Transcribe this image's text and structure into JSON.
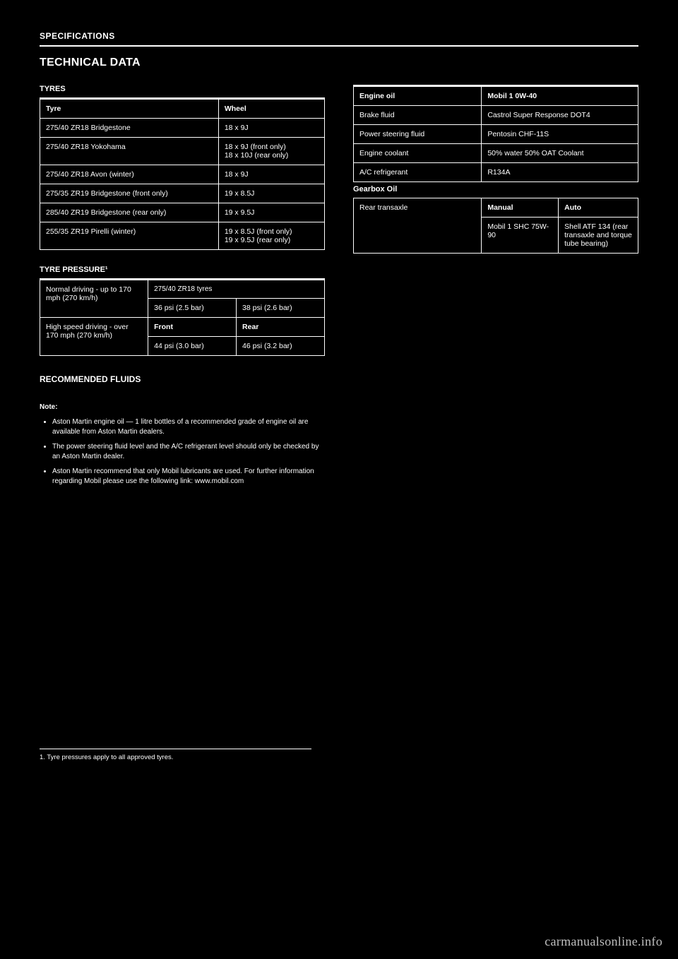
{
  "header": {
    "section_label": "SPECIFICATIONS",
    "page_title": "TECHNICAL DATA"
  },
  "left": {
    "tyres_title": "TYRES",
    "tyres_table": {
      "columns": [
        "Tyre",
        "Wheel"
      ],
      "rows": [
        [
          "275/40 ZR18 Bridgestone",
          "18 x 9J"
        ],
        [
          "275/40 ZR18 Yokohama",
          "18 x 9J (front only)\n18 x 10J (rear only)"
        ],
        [
          "275/40 ZR18 Avon (winter)",
          "18 x 9J"
        ],
        [
          "275/35 ZR19 Bridgestone (front only)",
          "19 x 8.5J"
        ],
        [
          "285/40 ZR19 Bridgestone (rear only)",
          "19 x 9.5J"
        ],
        [
          "255/35 ZR19 Pirelli (winter)",
          "19 x 8.5J (front only)\n19 x 9.5J (rear only)"
        ]
      ]
    },
    "pressure_title": "TYRE PRESSURE¹",
    "pressure_table": {
      "rows": [
        {
          "label": "Normal driving - up to 170 mph (270 km/h)",
          "span": true,
          "front": "36 psi (2.5 bar)",
          "rear": "38 psi (2.6 bar)"
        },
        {
          "label": "275/40 ZR18 tyres",
          "span": true,
          "front_header": "Front",
          "rear_header": "Rear"
        },
        {
          "label": "High speed driving - over 170 mph (270 km/h)",
          "span": false,
          "front": "44 psi (3.0 bar)",
          "rear": "46 psi (3.2 bar)"
        }
      ]
    },
    "fluids_title": "RECOMMENDED FLUIDS",
    "note_label": "Note:",
    "note_items": [
      "Aston Martin engine oil — 1 litre bottles of a recommended grade of engine oil are available from Aston Martin dealers.",
      "The power steering fluid level and the A/C refrigerant level should only be checked by an Aston Martin dealer.",
      "Aston Martin recommend that only Mobil lubricants are used. For further information regarding Mobil please use the following link: www.mobil.com"
    ],
    "footnote_text": "1. Tyre pressures apply to all approved tyres."
  },
  "right": {
    "fluids_table": {
      "columns": [
        "Engine oil",
        "Mobil 1 0W-40"
      ],
      "rows": [
        [
          "Brake fluid",
          "Castrol Super Response DOT4"
        ],
        [
          "Power steering fluid",
          "Pentosin CHF-11S"
        ],
        [
          "Engine coolant",
          "50% water 50% OAT Coolant"
        ],
        [
          "A/C refrigerant",
          "R134A"
        ]
      ]
    },
    "gearbox_title": "Gearbox Oil",
    "gearbox_table": {
      "rows": [
        {
          "label": "Rear transaxle",
          "col2": "Manual",
          "col3": "Auto"
        },
        {
          "label": "",
          "col2": "Mobil 1 SHC 75W-90",
          "col3": "Shell ATF 134 (rear transaxle and torque tube bearing)"
        }
      ]
    }
  },
  "site_url": "carmanualsonline.info",
  "colors": {
    "background": "#000000",
    "text": "#ffffff",
    "border": "#ffffff",
    "site": "#bfbfbf"
  }
}
